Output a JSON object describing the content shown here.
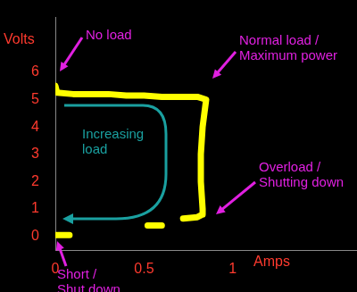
{
  "chart_data": {
    "type": "line",
    "x_label": "Amps",
    "y_label": "Volts",
    "x": [
      0,
      0.01,
      0.1,
      0.2,
      0.3,
      0.4,
      0.5,
      0.6,
      0.7,
      0.8,
      0.85,
      0.84,
      0.83,
      0.82,
      0.82,
      0.83,
      0.83,
      0.8,
      0.72,
      0.72,
      0.52,
      0.6,
      0.6,
      0,
      0.08
    ],
    "values": [
      5.5,
      5.25,
      5.2,
      5.2,
      5.2,
      5.15,
      5.15,
      5.1,
      5.1,
      5.1,
      5.0,
      4.5,
      4.0,
      3.0,
      2.0,
      1.0,
      0.8,
      0.7,
      0.65,
      null,
      0.4,
      0.4,
      null,
      0.05,
      0.05
    ],
    "color": "#ffff00",
    "xlim": [
      0,
      1.7
    ],
    "ylim": [
      -0.5,
      8
    ],
    "xticks": [
      0,
      0.5,
      1
    ],
    "yticks": [
      0,
      1,
      2,
      3,
      4,
      5,
      6
    ],
    "grid": false,
    "annotations": [
      {
        "text": "No load",
        "color": "#e020e0"
      },
      {
        "text": "Normal load /\nMaximum power",
        "color": "#e020e0"
      },
      {
        "text": "Increasing\nload",
        "color": "#1aa0a0"
      },
      {
        "text": "Overload /\nShutting down",
        "color": "#e020e0"
      },
      {
        "text": "Short /\nShut down",
        "color": "#e020e0"
      }
    ]
  }
}
